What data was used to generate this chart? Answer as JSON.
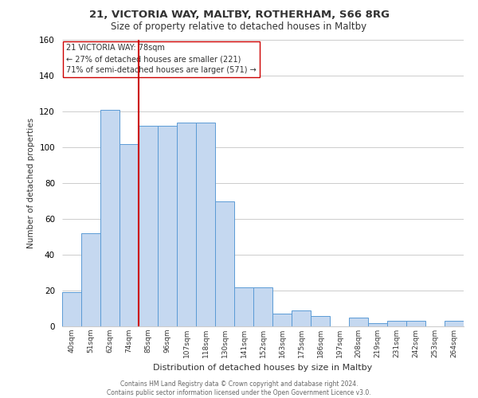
{
  "title1": "21, VICTORIA WAY, MALTBY, ROTHERHAM, S66 8RG",
  "title2": "Size of property relative to detached houses in Maltby",
  "xlabel": "Distribution of detached houses by size in Maltby",
  "ylabel": "Number of detached properties",
  "footer1": "Contains HM Land Registry data © Crown copyright and database right 2024.",
  "footer2": "Contains public sector information licensed under the Open Government Licence v3.0.",
  "annotation_line1": "21 VICTORIA WAY: 78sqm",
  "annotation_line2": "← 27% of detached houses are smaller (221)",
  "annotation_line3": "71% of semi-detached houses are larger (571) →",
  "bar_color": "#c5d8f0",
  "bar_edge_color": "#5b9bd5",
  "ref_line_color": "#cc0000",
  "categories": [
    "40sqm",
    "51sqm",
    "62sqm",
    "74sqm",
    "85sqm",
    "96sqm",
    "107sqm",
    "118sqm",
    "130sqm",
    "141sqm",
    "152sqm",
    "163sqm",
    "175sqm",
    "186sqm",
    "197sqm",
    "208sqm",
    "219sqm",
    "231sqm",
    "242sqm",
    "253sqm",
    "264sqm"
  ],
  "values": [
    19,
    52,
    121,
    102,
    112,
    112,
    114,
    114,
    70,
    22,
    22,
    7,
    9,
    6,
    0,
    5,
    2,
    3,
    3,
    0,
    3
  ],
  "ylim": [
    0,
    160
  ],
  "yticks": [
    0,
    20,
    40,
    60,
    80,
    100,
    120,
    140,
    160
  ],
  "background_color": "#ffffff",
  "grid_color": "#cccccc"
}
